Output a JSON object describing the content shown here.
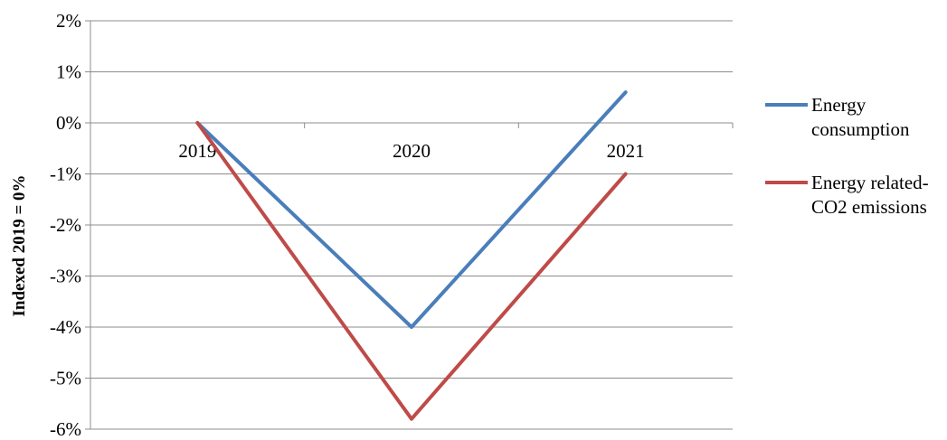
{
  "chart_data": {
    "type": "line",
    "categories": [
      "2019",
      "2020",
      "2021"
    ],
    "series": [
      {
        "name": "Energy consumption",
        "values": [
          0,
          -4,
          0.6
        ],
        "color": "#4a7ebb"
      },
      {
        "name": "Energy related-CO2 emissions",
        "values": [
          0,
          -5.8,
          -1
        ],
        "color": "#be4b48"
      }
    ],
    "ylabel": "Indexed 2019 = 0%",
    "ylim": [
      -6,
      2
    ],
    "yticks": [
      "2%",
      "1%",
      "0%",
      "-1%",
      "-2%",
      "-3%",
      "-4%",
      "-5%",
      "-6%"
    ],
    "grid": true,
    "legend": {
      "placement": "right",
      "entries": [
        {
          "lines": [
            "Energy",
            "consumption"
          ]
        },
        {
          "lines": [
            "Energy related-",
            "CO2 emissions"
          ]
        }
      ]
    }
  }
}
